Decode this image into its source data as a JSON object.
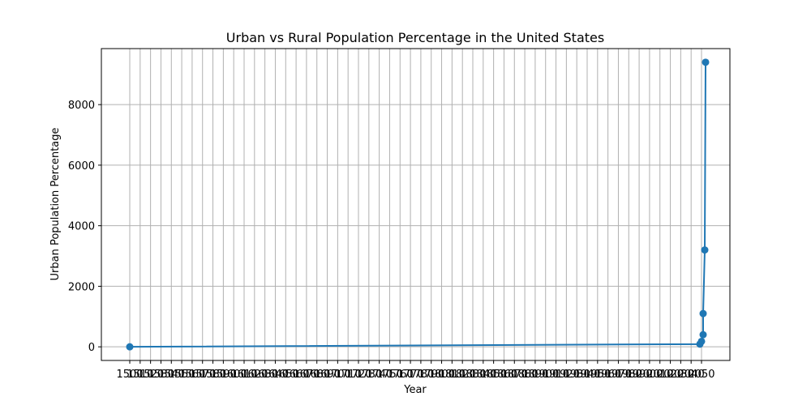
{
  "chart_data": {
    "type": "line",
    "title": "Urban vs Rural Population Percentage in the United States",
    "xlabel": "Year",
    "ylabel": "Urban Population Percentage",
    "grid": true,
    "series_color": "#1f77b4",
    "x_categories": [
      "1500",
      "1510",
      "1520",
      "1530",
      "1540",
      "1550",
      "1560",
      "1570",
      "1580",
      "1590",
      "1600",
      "1610",
      "1620",
      "1630",
      "1640",
      "1650",
      "1660",
      "1670",
      "1680",
      "1690",
      "1700",
      "1710",
      "1720",
      "1730",
      "1740",
      "1750",
      "1760",
      "1770",
      "1780",
      "1790",
      "1800",
      "1810",
      "1820",
      "1830",
      "1840",
      "1850",
      "1860",
      "1870",
      "1880",
      "1890",
      "1900",
      "1910",
      "1920",
      "1930",
      "1940",
      "1950",
      "1960",
      "1970",
      "1980",
      "1990",
      "2000",
      "2010",
      "2020",
      "2030",
      "2040",
      "2050"
    ],
    "ylim": [
      -450,
      9850
    ],
    "yticks": [
      0,
      2000,
      4000,
      6000,
      8000
    ],
    "line_points": [
      {
        "x": "1500",
        "y": 0
      },
      {
        "x": "2050",
        "y": 90
      },
      {
        "x": "2050",
        "y": 180
      },
      {
        "x": "2050",
        "y": 400
      },
      {
        "x": "2050",
        "y": 1100
      },
      {
        "x": "2050",
        "y": 3200
      },
      {
        "x": "2050",
        "y": 9400
      }
    ]
  }
}
